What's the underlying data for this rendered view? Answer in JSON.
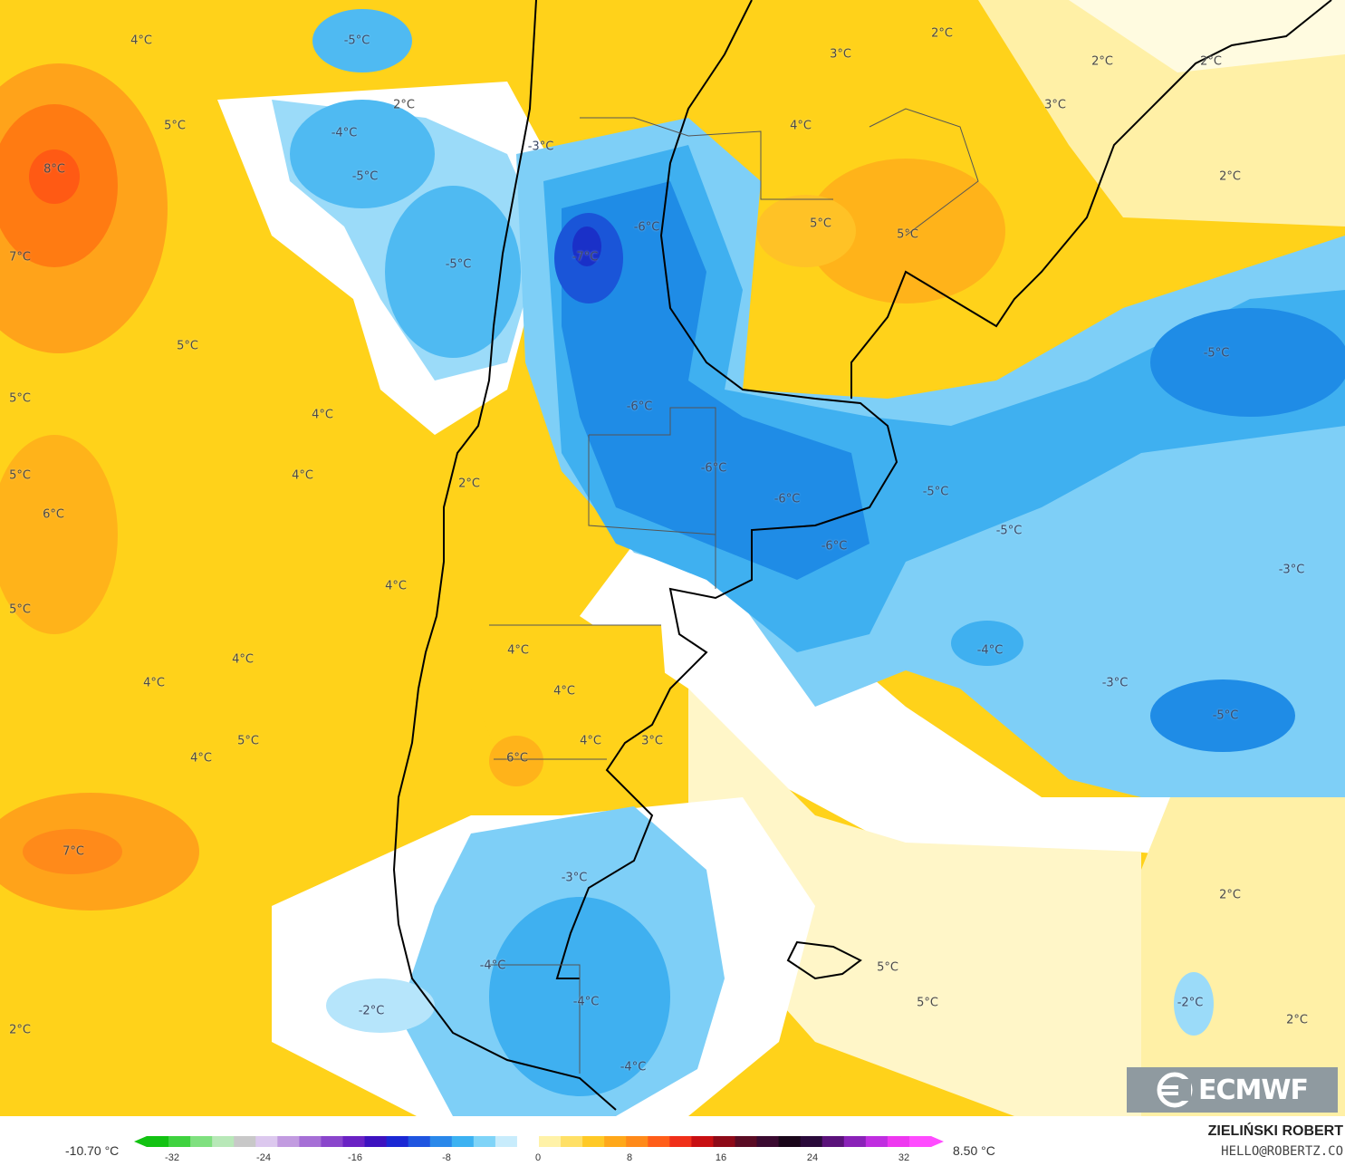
{
  "map": {
    "labels": [
      {
        "text": "4°C"
      },
      {
        "text": "-5°C"
      },
      {
        "text": "2°C"
      },
      {
        "text": "5°C"
      },
      {
        "text": "-4°C"
      },
      {
        "text": "8°C"
      },
      {
        "text": "-5°C"
      },
      {
        "text": "-3°C"
      },
      {
        "text": "-6°C"
      },
      {
        "text": "-7°C"
      },
      {
        "text": "-5°C"
      },
      {
        "text": "7°C"
      },
      {
        "text": "5°C"
      },
      {
        "text": "5°C"
      },
      {
        "text": "4°C"
      },
      {
        "text": "-6°C"
      },
      {
        "text": "5°C"
      },
      {
        "text": "4°C"
      },
      {
        "text": "2°C"
      },
      {
        "text": "-6°C"
      },
      {
        "text": "6°C"
      },
      {
        "text": "-6°C"
      },
      {
        "text": "-6°C"
      },
      {
        "text": "4°C"
      },
      {
        "text": "5°C"
      },
      {
        "text": "4°C"
      },
      {
        "text": "4°C"
      },
      {
        "text": "4°C"
      },
      {
        "text": "4°C"
      },
      {
        "text": "6°C"
      },
      {
        "text": "4°C"
      },
      {
        "text": "3°C"
      },
      {
        "text": "5°C"
      },
      {
        "text": "4°C"
      },
      {
        "text": "7°C"
      },
      {
        "text": "-3°C"
      },
      {
        "text": "-4°C"
      },
      {
        "text": "-4°C"
      },
      {
        "text": "-2°C"
      },
      {
        "text": "-4°C"
      },
      {
        "text": "2°C"
      },
      {
        "text": "3°C"
      },
      {
        "text": "2°C"
      },
      {
        "text": "2°C"
      },
      {
        "text": "4°C"
      },
      {
        "text": "3°C"
      },
      {
        "text": "2°C"
      },
      {
        "text": "2°C"
      },
      {
        "text": "5°C"
      },
      {
        "text": "5°C"
      },
      {
        "text": "-5°C"
      },
      {
        "text": "-5°C"
      },
      {
        "text": "-5°C"
      },
      {
        "text": "-3°C"
      },
      {
        "text": "-4°C"
      },
      {
        "text": "-3°C"
      },
      {
        "text": "-5°C"
      },
      {
        "text": "2°C"
      },
      {
        "text": "5°C"
      },
      {
        "text": "5°C"
      },
      {
        "text": "-2°C"
      },
      {
        "text": "2°C"
      },
      {
        "text": "•2°C"
      }
    ]
  },
  "logo": {
    "text": "ECMWF",
    "icon": "ecmwf-logo-icon"
  },
  "legend": {
    "min": "-10.70 °C",
    "max": "8.50 °C",
    "ticks": [
      "-32",
      "-24",
      "-16",
      "-8",
      "0",
      "8",
      "16",
      "24",
      "32"
    ],
    "colors": [
      "#12c212",
      "#3fd23f",
      "#7fe07f",
      "#b8e8b8",
      "#c8c8c8",
      "#dcc8ee",
      "#c29be0",
      "#a66fd6",
      "#8a46cc",
      "#6a22c4",
      "#3d12c0",
      "#1b28d4",
      "#1f55e0",
      "#2a88ea",
      "#3cb2f2",
      "#7fd4f8",
      "#c8ecfc",
      "#ffffff",
      "#fff2a8",
      "#ffe066",
      "#ffc926",
      "#ffa81a",
      "#ff8a1a",
      "#ff5e1a",
      "#f0301a",
      "#c80f12",
      "#8e0a18",
      "#5a0c24",
      "#3a0a30",
      "#1a061a",
      "#2a0a3a",
      "#5a127a",
      "#8a22b8",
      "#c02ee0",
      "#ee38f0",
      "#ff4cff"
    ]
  },
  "author": {
    "name": "ZIELIŃSKI ROBERT",
    "email": "HELLO@ROBERTZ.CO"
  }
}
